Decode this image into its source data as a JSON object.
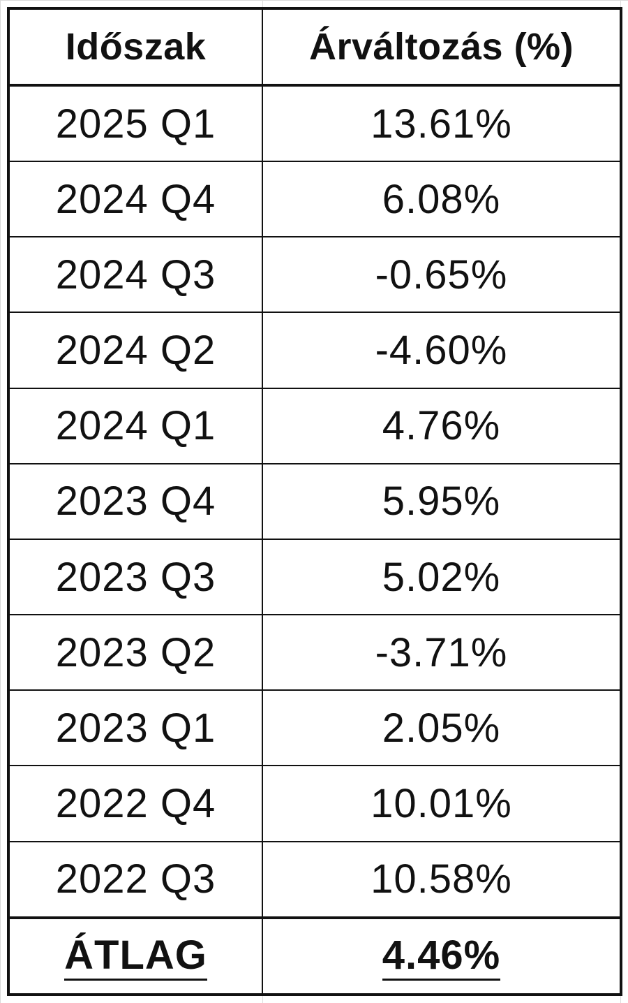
{
  "table": {
    "headers": {
      "period": "Időszak",
      "price_change": "Árváltozás (%)"
    },
    "rows": [
      {
        "period": "2025 Q1",
        "change": "13.61%"
      },
      {
        "period": "2024 Q4",
        "change": "6.08%"
      },
      {
        "period": "2024 Q3",
        "change": "-0.65%"
      },
      {
        "period": "2024 Q2",
        "change": "-4.60%"
      },
      {
        "period": "2024 Q1",
        "change": "4.76%"
      },
      {
        "period": "2023 Q4",
        "change": "5.95%"
      },
      {
        "period": "2023 Q3",
        "change": "5.02%"
      },
      {
        "period": "2023 Q2",
        "change": "-3.71%"
      },
      {
        "period": "2023 Q1",
        "change": "2.05%"
      },
      {
        "period": "2022 Q4",
        "change": "10.01%"
      },
      {
        "period": "2022 Q3",
        "change": "10.58%"
      }
    ],
    "average": {
      "label": "ÁTLAG",
      "value": "4.46%"
    }
  }
}
